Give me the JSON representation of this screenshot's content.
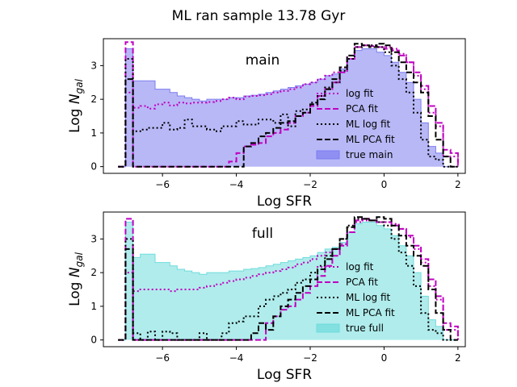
{
  "figure": {
    "title": "ML ran sample 13.78 Gyr"
  },
  "chart_data": [
    {
      "type": "line",
      "panel_label": "main",
      "xlabel": "Log SFR",
      "ylabel_prefix": "Log ",
      "ylabel_var": "N",
      "ylabel_sub": "gal",
      "xlim": [
        -7.6,
        2.2
      ],
      "ylim": [
        -0.2,
        3.8
      ],
      "xticks": [
        -6,
        -4,
        -2,
        0,
        2
      ],
      "xtick_labels": [
        "−6",
        "−4",
        "−2",
        "0",
        "2"
      ],
      "yticks": [
        0,
        1,
        2,
        3
      ],
      "ytick_labels": [
        "0",
        "1",
        "2",
        "3"
      ],
      "legend_position": "lower-right",
      "series": [
        {
          "name": "log fit",
          "style": "dotted",
          "color": "#c000c0",
          "x": [
            -7.2,
            -7.0,
            -6.8,
            -6.6,
            -6.4,
            -6.2,
            -6.0,
            -5.8,
            -5.6,
            -5.4,
            -5.2,
            -5.0,
            -4.8,
            -4.6,
            -4.4,
            -4.2,
            -4.0,
            -3.8,
            -3.6,
            -3.4,
            -3.2,
            -3.0,
            -2.8,
            -2.6,
            -2.4,
            -2.2,
            -2.0,
            -1.8,
            -1.6,
            -1.4,
            -1.2,
            -1.0,
            -0.8,
            -0.6,
            -0.4,
            -0.2,
            0.0,
            0.2,
            0.4,
            0.6,
            0.8,
            1.0,
            1.2,
            1.4,
            1.6,
            1.8
          ],
          "y": [
            0,
            2.2,
            1.75,
            1.8,
            1.72,
            1.85,
            1.9,
            1.82,
            1.9,
            1.88,
            1.9,
            1.9,
            1.92,
            1.95,
            2.0,
            2.05,
            2.0,
            2.08,
            2.1,
            2.12,
            2.15,
            2.2,
            2.25,
            2.3,
            2.35,
            2.45,
            2.5,
            2.6,
            2.7,
            2.8,
            2.95,
            3.3,
            3.55,
            3.6,
            3.6,
            3.55,
            3.55,
            3.5,
            3.35,
            3.1,
            2.7,
            2.3,
            1.6,
            1.2,
            0.3,
            0.3
          ]
        },
        {
          "name": "PCA fit",
          "style": "dashed",
          "color": "#c000c0",
          "x": [
            -7.2,
            -7.0,
            -6.8,
            -6.6,
            -6.4,
            -6.2,
            -6.0,
            -5.8,
            -5.6,
            -5.4,
            -5.2,
            -5.0,
            -4.8,
            -4.6,
            -4.4,
            -4.2,
            -4.0,
            -3.8,
            -3.6,
            -3.4,
            -3.2,
            -3.0,
            -2.8,
            -2.6,
            -2.4,
            -2.2,
            -2.0,
            -1.8,
            -1.6,
            -1.4,
            -1.2,
            -1.0,
            -0.8,
            -0.6,
            -0.4,
            -0.2,
            0.0,
            0.2,
            0.4,
            0.6,
            0.8,
            1.0,
            1.2,
            1.4,
            1.6,
            1.8
          ],
          "y": [
            0,
            3.7,
            0,
            0,
            0,
            0,
            0,
            0,
            0,
            0,
            0,
            0,
            0,
            0,
            0,
            0.15,
            0.4,
            0.6,
            0.65,
            0.7,
            0.9,
            1.0,
            1.1,
            1.3,
            1.5,
            1.6,
            1.8,
            2.1,
            2.3,
            2.5,
            2.8,
            3.2,
            3.55,
            3.6,
            3.58,
            3.55,
            3.5,
            3.45,
            3.3,
            3.1,
            2.8,
            2.4,
            1.8,
            1.3,
            0.5,
            0.4
          ]
        },
        {
          "name": "ML log fit",
          "style": "dotted",
          "color": "#000000",
          "x": [
            -7.2,
            -7.0,
            -6.8,
            -6.6,
            -6.4,
            -6.2,
            -6.0,
            -5.8,
            -5.6,
            -5.4,
            -5.2,
            -5.0,
            -4.8,
            -4.6,
            -4.4,
            -4.2,
            -4.0,
            -3.8,
            -3.6,
            -3.4,
            -3.2,
            -3.0,
            -2.8,
            -2.6,
            -2.4,
            -2.2,
            -2.0,
            -1.8,
            -1.6,
            -1.4,
            -1.2,
            -1.0,
            -0.8,
            -0.6,
            -0.4,
            -0.2,
            0.0,
            0.2,
            0.4,
            0.6,
            0.8,
            1.0,
            1.2,
            1.4,
            1.6,
            1.8
          ],
          "y": [
            0,
            3.2,
            1.05,
            1.1,
            1.15,
            1.15,
            1.3,
            1.1,
            1.15,
            1.4,
            1.2,
            1.2,
            1.1,
            1.05,
            1.2,
            1.2,
            1.35,
            1.25,
            1.25,
            1.4,
            1.4,
            1.3,
            1.55,
            1.2,
            1.65,
            1.7,
            1.9,
            2.1,
            2.35,
            2.5,
            2.85,
            3.2,
            3.55,
            3.6,
            3.6,
            3.55,
            3.4,
            3.0,
            2.6,
            2.2,
            1.6,
            0.8,
            0.3,
            0.2,
            0,
            0
          ]
        },
        {
          "name": "ML PCA fit",
          "style": "dashed",
          "color": "#000000",
          "x": [
            -7.2,
            -7.0,
            -6.8,
            -6.6,
            -6.4,
            -6.2,
            -6.0,
            -5.8,
            -5.6,
            -5.4,
            -5.2,
            -5.0,
            -4.8,
            -4.6,
            -4.4,
            -4.2,
            -4.0,
            -3.8,
            -3.6,
            -3.4,
            -3.2,
            -3.0,
            -2.8,
            -2.6,
            -2.4,
            -2.2,
            -2.0,
            -1.8,
            -1.6,
            -1.4,
            -1.2,
            -1.0,
            -0.8,
            -0.6,
            -0.4,
            -0.2,
            0.0,
            0.2,
            0.4,
            0.6,
            0.8,
            1.0,
            1.2,
            1.4,
            1.6,
            1.8
          ],
          "y": [
            0,
            2.6,
            0,
            0,
            0,
            0,
            0,
            0,
            0,
            0,
            0,
            0,
            0,
            0,
            0,
            0,
            0,
            0.6,
            0.7,
            0.9,
            1.0,
            1.15,
            1.3,
            1.35,
            1.5,
            1.6,
            1.85,
            2.0,
            2.3,
            2.6,
            2.95,
            3.3,
            3.65,
            3.6,
            3.55,
            3.65,
            3.6,
            3.4,
            3.1,
            2.8,
            2.5,
            2.2,
            1.5,
            0.8,
            0.3,
            0
          ]
        },
        {
          "name": "true main",
          "style": "filled",
          "color": "#7d7df0",
          "x": [
            -7.2,
            -7.0,
            -6.8,
            -6.6,
            -6.4,
            -6.2,
            -6.0,
            -5.8,
            -5.6,
            -5.4,
            -5.2,
            -5.0,
            -4.8,
            -4.6,
            -4.4,
            -4.2,
            -4.0,
            -3.8,
            -3.6,
            -3.4,
            -3.2,
            -3.0,
            -2.8,
            -2.6,
            -2.4,
            -2.2,
            -2.0,
            -1.8,
            -1.6,
            -1.4,
            -1.2,
            -1.0,
            -0.8,
            -0.6,
            -0.4,
            -0.2,
            0.0,
            0.2,
            0.4,
            0.6,
            0.8,
            1.0,
            1.2,
            1.4,
            1.6,
            1.8
          ],
          "y": [
            0,
            3.5,
            2.55,
            2.55,
            2.55,
            2.3,
            2.3,
            2.2,
            2.1,
            2.05,
            2.0,
            1.95,
            2.0,
            2.0,
            2.0,
            2.05,
            2.05,
            2.1,
            2.12,
            2.15,
            2.2,
            2.25,
            2.3,
            2.35,
            2.4,
            2.45,
            2.5,
            2.6,
            2.7,
            2.75,
            2.9,
            3.2,
            3.45,
            3.5,
            3.5,
            3.4,
            3.3,
            3.1,
            2.8,
            2.5,
            2.0,
            1.3,
            0.6,
            0.4,
            0,
            0
          ]
        }
      ]
    },
    {
      "type": "line",
      "panel_label": "full",
      "xlabel": "Log SFR",
      "ylabel_prefix": "Log ",
      "ylabel_var": "N",
      "ylabel_sub": "gal",
      "xlim": [
        -7.6,
        2.2
      ],
      "ylim": [
        -0.2,
        3.8
      ],
      "xticks": [
        -6,
        -4,
        -2,
        0,
        2
      ],
      "xtick_labels": [
        "−6",
        "−4",
        "−2",
        "0",
        "2"
      ],
      "yticks": [
        0,
        1,
        2,
        3
      ],
      "ytick_labels": [
        "0",
        "1",
        "2",
        "3"
      ],
      "legend_position": "lower-right",
      "series": [
        {
          "name": "log fit",
          "style": "dotted",
          "color": "#c000c0",
          "x": [
            -7.2,
            -7.0,
            -6.8,
            -6.6,
            -6.4,
            -6.2,
            -6.0,
            -5.8,
            -5.6,
            -5.4,
            -5.2,
            -5.0,
            -4.8,
            -4.6,
            -4.4,
            -4.2,
            -4.0,
            -3.8,
            -3.6,
            -3.4,
            -3.2,
            -3.0,
            -2.8,
            -2.6,
            -2.4,
            -2.2,
            -2.0,
            -1.8,
            -1.6,
            -1.4,
            -1.2,
            -1.0,
            -0.8,
            -0.6,
            -0.4,
            -0.2,
            0.0,
            0.2,
            0.4,
            0.6,
            0.8,
            1.0,
            1.2,
            1.4,
            1.6,
            1.8
          ],
          "y": [
            0,
            2.0,
            1.45,
            1.5,
            1.5,
            1.5,
            1.5,
            1.45,
            1.5,
            1.5,
            1.5,
            1.55,
            1.6,
            1.65,
            1.7,
            1.75,
            1.8,
            1.85,
            1.9,
            1.95,
            2.0,
            2.05,
            2.1,
            2.15,
            2.25,
            2.3,
            2.4,
            2.5,
            2.6,
            2.7,
            2.85,
            3.2,
            3.5,
            3.55,
            3.55,
            3.5,
            3.5,
            3.45,
            3.3,
            3.05,
            2.7,
            2.3,
            1.6,
            1.2,
            0.3,
            0.3
          ]
        },
        {
          "name": "PCA fit",
          "style": "dashed",
          "color": "#c000c0",
          "x": [
            -7.2,
            -7.0,
            -6.8,
            -6.6,
            -6.4,
            -6.2,
            -6.0,
            -5.8,
            -5.6,
            -5.4,
            -5.2,
            -5.0,
            -4.8,
            -4.6,
            -4.4,
            -4.2,
            -4.0,
            -3.8,
            -3.6,
            -3.4,
            -3.2,
            -3.0,
            -2.8,
            -2.6,
            -2.4,
            -2.2,
            -2.0,
            -1.8,
            -1.6,
            -1.4,
            -1.2,
            -1.0,
            -0.8,
            -0.6,
            -0.4,
            -0.2,
            0.0,
            0.2,
            0.4,
            0.6,
            0.8,
            1.0,
            1.2,
            1.4,
            1.6,
            1.8
          ],
          "y": [
            0,
            3.6,
            0,
            0,
            0,
            0,
            0,
            0,
            0,
            0,
            0,
            0,
            0,
            0,
            0,
            0,
            0,
            0,
            0,
            0,
            0.5,
            0.7,
            0.9,
            1.0,
            1.2,
            1.4,
            1.6,
            1.9,
            2.2,
            2.5,
            2.8,
            3.2,
            3.55,
            3.6,
            3.55,
            3.5,
            3.5,
            3.4,
            3.3,
            3.1,
            2.8,
            2.4,
            1.8,
            1.3,
            0.5,
            0.4
          ]
        },
        {
          "name": "ML log fit",
          "style": "dotted",
          "color": "#000000",
          "x": [
            -7.2,
            -7.0,
            -6.8,
            -6.6,
            -6.4,
            -6.2,
            -6.0,
            -5.8,
            -5.6,
            -5.4,
            -5.2,
            -5.0,
            -4.8,
            -4.6,
            -4.4,
            -4.2,
            -4.0,
            -3.8,
            -3.6,
            -3.4,
            -3.2,
            -3.0,
            -2.8,
            -2.6,
            -2.4,
            -2.2,
            -2.0,
            -1.8,
            -1.6,
            -1.4,
            -1.2,
            -1.0,
            -0.8,
            -0.6,
            -0.4,
            -0.2,
            0.0,
            0.2,
            0.4,
            0.6,
            0.8,
            1.0,
            1.2,
            1.4,
            1.6,
            1.8
          ],
          "y": [
            0,
            3.0,
            0.2,
            0,
            0.25,
            0,
            0.25,
            0.2,
            0,
            0,
            0,
            0.2,
            0,
            0,
            0.2,
            0.5,
            0.55,
            0.7,
            0.7,
            1.0,
            1.2,
            1.3,
            1.4,
            1.5,
            1.7,
            1.8,
            2.0,
            2.2,
            2.5,
            2.7,
            3.0,
            3.4,
            3.6,
            3.6,
            3.55,
            3.5,
            3.4,
            3.0,
            2.6,
            2.2,
            1.6,
            0.8,
            0.3,
            0.2,
            0,
            0
          ]
        },
        {
          "name": "ML PCA fit",
          "style": "dashed",
          "color": "#000000",
          "x": [
            -7.2,
            -7.0,
            -6.8,
            -6.6,
            -6.4,
            -6.2,
            -6.0,
            -5.8,
            -5.6,
            -5.4,
            -5.2,
            -5.0,
            -4.8,
            -4.6,
            -4.4,
            -4.2,
            -4.0,
            -3.8,
            -3.6,
            -3.4,
            -3.2,
            -3.0,
            -2.8,
            -2.6,
            -2.4,
            -2.2,
            -2.0,
            -1.8,
            -1.6,
            -1.4,
            -1.2,
            -1.0,
            -0.8,
            -0.6,
            -0.4,
            -0.2,
            0.0,
            0.2,
            0.4,
            0.6,
            0.8,
            1.0,
            1.2,
            1.4,
            1.6,
            1.8
          ],
          "y": [
            0,
            2.7,
            0,
            0,
            0,
            0,
            0,
            0,
            0,
            0,
            0,
            0,
            0,
            0,
            0,
            0,
            0,
            0,
            0.2,
            0.5,
            0.3,
            0.7,
            1.0,
            1.2,
            1.4,
            1.6,
            1.8,
            2.1,
            2.4,
            2.7,
            3.0,
            3.35,
            3.65,
            3.6,
            3.55,
            3.65,
            3.6,
            3.4,
            3.1,
            2.8,
            2.5,
            2.2,
            1.5,
            0.8,
            0.3,
            0
          ]
        },
        {
          "name": "true full",
          "style": "filled",
          "color": "#6fdcdc",
          "x": [
            -7.2,
            -7.0,
            -6.8,
            -6.6,
            -6.4,
            -6.2,
            -6.0,
            -5.8,
            -5.6,
            -5.4,
            -5.2,
            -5.0,
            -4.8,
            -4.6,
            -4.4,
            -4.2,
            -4.0,
            -3.8,
            -3.6,
            -3.4,
            -3.2,
            -3.0,
            -2.8,
            -2.6,
            -2.4,
            -2.2,
            -2.0,
            -1.8,
            -1.6,
            -1.4,
            -1.2,
            -1.0,
            -0.8,
            -0.6,
            -0.4,
            -0.2,
            0.0,
            0.2,
            0.4,
            0.6,
            0.8,
            1.0,
            1.2,
            1.4,
            1.6,
            1.8
          ],
          "y": [
            0,
            3.5,
            2.45,
            2.55,
            2.55,
            2.3,
            2.3,
            2.2,
            2.1,
            2.05,
            2.0,
            1.95,
            2.0,
            2.0,
            2.0,
            2.05,
            2.05,
            2.1,
            2.12,
            2.15,
            2.2,
            2.25,
            2.3,
            2.35,
            2.4,
            2.45,
            2.5,
            2.6,
            2.7,
            2.75,
            2.9,
            3.2,
            3.45,
            3.5,
            3.5,
            3.4,
            3.3,
            3.1,
            2.8,
            2.5,
            2.0,
            1.3,
            0.6,
            0.4,
            0,
            0
          ]
        }
      ]
    }
  ]
}
